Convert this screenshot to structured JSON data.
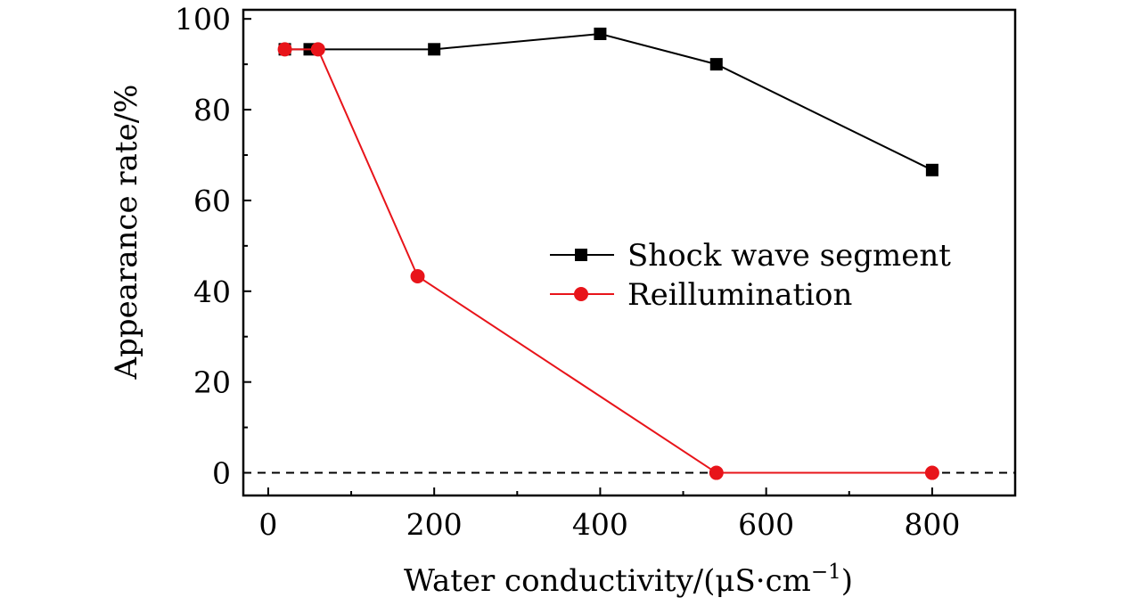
{
  "chart_data": {
    "type": "line",
    "title": "",
    "xlabel": "Water conductivity/(μS·cm",
    "xlabel_sup": "−1",
    "xlabel_close": ")",
    "ylabel": "Appearance rate/%",
    "xlim": [
      -30,
      900
    ],
    "ylim": [
      -5,
      102
    ],
    "xticks": [
      0,
      200,
      400,
      600,
      800
    ],
    "yticks": [
      0,
      20,
      40,
      60,
      80,
      100
    ],
    "x_minor_ticks": [
      100,
      300,
      500,
      700,
      900
    ],
    "y_minor_ticks": [
      10,
      30,
      50,
      70,
      90
    ],
    "reference_line": {
      "y": 0,
      "style": "dashed",
      "color": "#000000"
    },
    "legend_position": "center-right",
    "series": [
      {
        "name": "Shock wave segment",
        "color": "#000000",
        "marker": "square",
        "x": [
          20,
          50,
          200,
          400,
          540,
          800
        ],
        "y": [
          93.3,
          93.3,
          93.3,
          96.7,
          90.0,
          66.7
        ]
      },
      {
        "name": "Reillumination",
        "color": "#e8141a",
        "marker": "circle",
        "x": [
          20,
          60,
          180,
          540,
          800
        ],
        "y": [
          93.3,
          93.3,
          43.3,
          0,
          0
        ]
      }
    ]
  }
}
